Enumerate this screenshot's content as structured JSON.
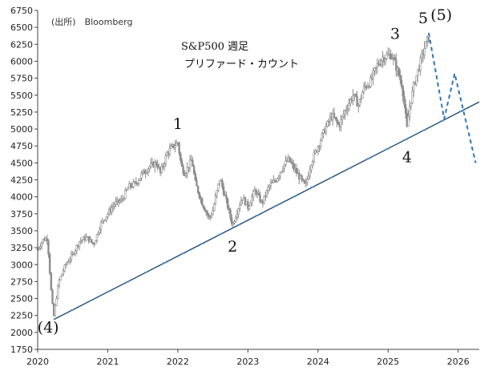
{
  "chart_data": {
    "type": "candlestick",
    "title": "S&P500 週足",
    "subtitle": "プリファード・カウント",
    "source": "(出所)　Bloomberg",
    "xlabel": "",
    "ylabel": "",
    "xlim": [
      2020.0,
      2026.3
    ],
    "ylim": [
      1750,
      6750
    ],
    "yticks": [
      1750,
      2000,
      2250,
      2500,
      2750,
      3000,
      3250,
      3500,
      3750,
      4000,
      4250,
      4500,
      4750,
      5000,
      5250,
      5500,
      5750,
      6000,
      6250,
      6500,
      6750
    ],
    "xticks": [
      {
        "label": "2020",
        "t": 2020.0
      },
      {
        "label": "2021",
        "t": 2021.0
      },
      {
        "label": "2022",
        "t": 2022.0
      },
      {
        "label": "2023",
        "t": 2023.0
      },
      {
        "label": "2024",
        "t": 2024.0
      },
      {
        "label": "2025",
        "t": 2025.0
      },
      {
        "label": "2026",
        "t": 2026.0
      }
    ],
    "grid": false,
    "price_path": [
      [
        2020.0,
        3230
      ],
      [
        2020.08,
        3370
      ],
      [
        2020.14,
        3386
      ],
      [
        2020.2,
        2500
      ],
      [
        2020.23,
        2237
      ],
      [
        2020.3,
        2750
      ],
      [
        2020.4,
        3000
      ],
      [
        2020.5,
        3150
      ],
      [
        2020.6,
        3350
      ],
      [
        2020.7,
        3400
      ],
      [
        2020.8,
        3300
      ],
      [
        2020.9,
        3600
      ],
      [
        2021.0,
        3750
      ],
      [
        2021.1,
        3900
      ],
      [
        2021.2,
        3950
      ],
      [
        2021.3,
        4150
      ],
      [
        2021.4,
        4200
      ],
      [
        2021.5,
        4350
      ],
      [
        2021.6,
        4450
      ],
      [
        2021.7,
        4500
      ],
      [
        2021.75,
        4350
      ],
      [
        2021.85,
        4650
      ],
      [
        2021.95,
        4760
      ],
      [
        2022.0,
        4800
      ],
      [
        2022.05,
        4450
      ],
      [
        2022.1,
        4350
      ],
      [
        2022.2,
        4550
      ],
      [
        2022.25,
        4200
      ],
      [
        2022.35,
        3900
      ],
      [
        2022.45,
        3680
      ],
      [
        2022.5,
        3800
      ],
      [
        2022.6,
        4280
      ],
      [
        2022.7,
        3900
      ],
      [
        2022.78,
        3580
      ],
      [
        2022.85,
        3800
      ],
      [
        2022.92,
        4000
      ],
      [
        2023.0,
        3850
      ],
      [
        2023.1,
        4100
      ],
      [
        2023.2,
        3900
      ],
      [
        2023.3,
        4150
      ],
      [
        2023.4,
        4250
      ],
      [
        2023.5,
        4450
      ],
      [
        2023.58,
        4550
      ],
      [
        2023.7,
        4350
      ],
      [
        2023.82,
        4150
      ],
      [
        2023.9,
        4500
      ],
      [
        2024.0,
        4750
      ],
      [
        2024.1,
        5000
      ],
      [
        2024.2,
        5200
      ],
      [
        2024.3,
        5050
      ],
      [
        2024.4,
        5300
      ],
      [
        2024.5,
        5500
      ],
      [
        2024.58,
        5350
      ],
      [
        2024.65,
        5600
      ],
      [
        2024.75,
        5700
      ],
      [
        2024.85,
        5950
      ],
      [
        2024.92,
        6050
      ],
      [
        2025.05,
        6100
      ],
      [
        2025.12,
        5900
      ],
      [
        2025.2,
        5650
      ],
      [
        2025.27,
        5000
      ],
      [
        2025.3,
        5300
      ],
      [
        2025.38,
        5700
      ],
      [
        2025.45,
        5950
      ],
      [
        2025.52,
        6200
      ],
      [
        2025.58,
        6350
      ]
    ],
    "trendline": {
      "from": [
        2020.23,
        2190
      ],
      "to": [
        2026.3,
        5400
      ]
    },
    "forecast_path": [
      [
        2025.58,
        6420
      ],
      [
        2025.8,
        5150
      ],
      [
        2025.95,
        5820
      ],
      [
        2026.25,
        4500
      ]
    ],
    "colors": {
      "candles": "#8c8c8c",
      "trendline": "#1f4e79",
      "trendline_ticks": "#4a90c8",
      "forecast": "#2e75b6"
    },
    "wave_labels": [
      {
        "text": "(4)",
        "t": 2020.15,
        "v": 2000
      },
      {
        "text": "1",
        "t": 2022.0,
        "v": 5000
      },
      {
        "text": "2",
        "t": 2022.78,
        "v": 3190
      },
      {
        "text": "3",
        "t": 2025.1,
        "v": 6330
      },
      {
        "text": "4",
        "t": 2025.27,
        "v": 4510
      },
      {
        "text": "5",
        "t": 2025.5,
        "v": 6560
      },
      {
        "text": "(5)",
        "t": 2025.76,
        "v": 6610
      }
    ]
  }
}
